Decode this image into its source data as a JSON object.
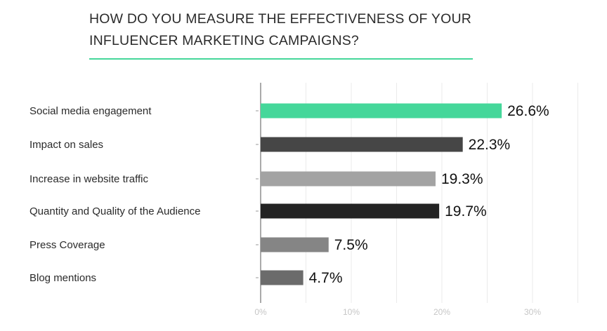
{
  "title_lines": [
    "HOW DO YOU MEASURE THE EFFECTIVENESS OF YOUR",
    "INFLUENCER MARKETING CAMPAIGNS?"
  ],
  "colors": {
    "accent": "#45d79a",
    "title": "#2b2b2b",
    "grid": "#ebebeb",
    "axis": "#555555"
  },
  "chart_data": {
    "type": "bar",
    "orientation": "horizontal",
    "title": "HOW DO YOU MEASURE THE EFFECTIVENESS OF YOUR INFLUENCER MARKETING CAMPAIGNS?",
    "categories": [
      "Social media engagement",
      "Impact on sales",
      "Increase in website traffic",
      "Quantity and Quality of the Audience",
      "Press Coverage",
      "Blog mentions"
    ],
    "values": [
      26.6,
      22.3,
      19.3,
      19.7,
      7.5,
      4.7
    ],
    "value_labels": [
      "26.6%",
      "22.3%",
      "19.3%",
      "19.7%",
      "7.5%",
      "4.7%"
    ],
    "bar_colors": [
      "#45d79a",
      "#464646",
      "#a3a3a3",
      "#232323",
      "#858585",
      "#6b6b6b"
    ],
    "xlim": [
      0,
      35
    ],
    "xticks": [
      0,
      10,
      20,
      30
    ],
    "xtick_labels": [
      "0%",
      "10%",
      "20%",
      "30%"
    ],
    "grid": true,
    "legend": "none"
  }
}
